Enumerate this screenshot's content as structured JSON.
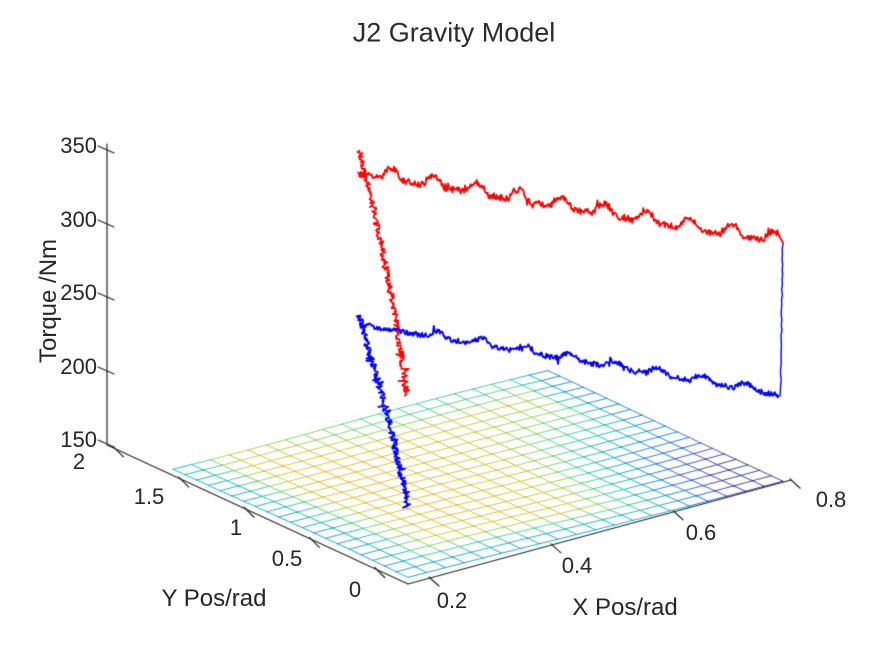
{
  "figure": {
    "background": "#ffffff",
    "axis_color": "#262626",
    "text_color": "#262626"
  },
  "chart_data": {
    "type": "line",
    "projection": "3d",
    "grid": "off",
    "title": "J2 Gravity Model",
    "axes": {
      "x": {
        "label": "X Pos/rad",
        "ticks": [
          "0.2",
          "0.4",
          "0.6",
          "0.8"
        ],
        "range": [
          0.15,
          0.8
        ]
      },
      "y": {
        "label": "Y Pos/rad",
        "ticks": [
          "2",
          "1.5",
          "1",
          "0.5",
          "0"
        ],
        "range": [
          0,
          2
        ]
      },
      "z": {
        "label": "Torque /Nm",
        "ticks": [
          "350",
          "300",
          "250",
          "200",
          "150"
        ],
        "range": [
          150,
          350
        ]
      }
    },
    "series": [
      {
        "id": "measured-torque-red",
        "color": "#ff0000",
        "style": "noisy line with periodic ripple, declining with x",
        "x_pos": [
          0.15,
          0.22,
          0.29,
          0.36,
          0.43,
          0.51,
          0.58,
          0.65,
          0.72,
          0.8
        ],
        "torque": [
          334,
          330,
          326,
          322,
          317,
          312,
          306,
          300,
          292,
          284
        ],
        "ripple_period_rad": 0.07,
        "ripple_amplitude_nm": 7,
        "noise_amplitude_nm": 3,
        "start_transient": {
          "x_pos": 0.2,
          "torque_from": 345,
          "torque_to": 182
        }
      },
      {
        "id": "model-torque-blue",
        "color": "#0000ff",
        "style": "noisy line, declining with x",
        "x_pos": [
          0.15,
          0.22,
          0.29,
          0.36,
          0.43,
          0.51,
          0.58,
          0.65,
          0.72,
          0.8
        ],
        "torque": [
          231,
          228,
          225,
          221,
          216,
          211,
          205,
          199,
          193,
          186
        ],
        "ripple_amplitude_nm": 4,
        "noise_amplitude_nm": 2.5,
        "start_transient": {
          "x_pos": 0.2,
          "torque_from": 232,
          "torque_to": 168
        },
        "end_jump": {
          "x_pos": 0.8,
          "torque_from": 186,
          "torque_to": 285
        }
      }
    ],
    "surface": {
      "id": "gravity-model-surface",
      "colormap": "parula",
      "grid_lines": 21,
      "x_range": [
        0.2,
        0.8
      ],
      "y_range": [
        0,
        2
      ],
      "torque_range": [
        150,
        170
      ],
      "colormap_stops": [
        [
          0.0,
          "#352a87"
        ],
        [
          0.12,
          "#3e3dc1"
        ],
        [
          0.25,
          "#1b63d8"
        ],
        [
          0.38,
          "#0f80d9"
        ],
        [
          0.5,
          "#0fa3cc"
        ],
        [
          0.6,
          "#0cbcb4"
        ],
        [
          0.7,
          "#45cf8e"
        ],
        [
          0.79,
          "#8ed054"
        ],
        [
          0.87,
          "#cbc829"
        ],
        [
          0.94,
          "#edb61f"
        ],
        [
          1.0,
          "#f9e51b"
        ]
      ]
    }
  }
}
